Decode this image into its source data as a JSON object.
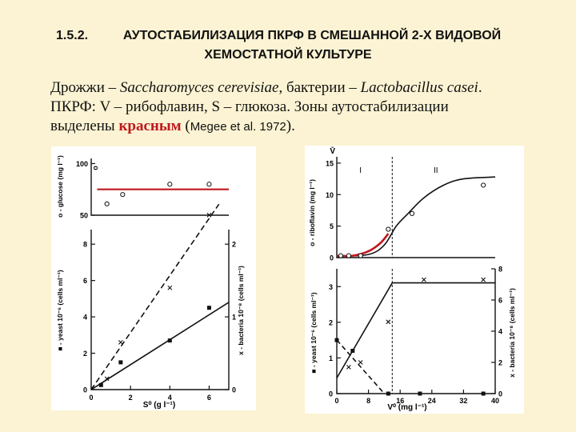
{
  "header": {
    "section_number": "1.5.2.",
    "title_line1": "АУТОСТАБИЛИЗАЦИЯ ПКРФ В СМЕШАННОЙ 2-Х ВИДОВОЙ",
    "title_line2": "ХЕМОСТАТНОЙ КУЛЬТУРЕ"
  },
  "description": {
    "line1_a": "Дрожжи – ",
    "line1_b": "Saccharomyces cerevisiae",
    "line1_c": ", бактерии – ",
    "line1_d": "Lactobacillus casei",
    "line1_e": ".",
    "line2": "ПКРФ: V – рибофлавин, S – глюкоза. Зоны аутостабилизации",
    "line3_a": "выделены ",
    "line3_red": "красным",
    "line3_b": " (",
    "line3_c": "Megee et al. 1972",
    "line3_d": ")."
  },
  "colors": {
    "background": "#fbf3d3",
    "highlight": "#c0181e"
  },
  "chart_data": [
    {
      "type": "scatter",
      "id": "left-top",
      "ylabel": "o - glucose (mg l⁻¹)",
      "yticks": [
        50,
        100
      ],
      "ylim": [
        50,
        105
      ],
      "xlim": [
        0,
        7
      ],
      "panel_letter": "o",
      "series": [
        {
          "marker": "o",
          "points": [
            [
              0.8,
              61
            ],
            [
              1.6,
              70
            ],
            [
              4.0,
              80
            ],
            [
              6.0,
              80
            ]
          ]
        },
        {
          "line": "red-constant",
          "points": [
            [
              0.3,
              75
            ],
            [
              7.0,
              75
            ]
          ]
        }
      ]
    },
    {
      "type": "scatter",
      "id": "left-bottom",
      "xlabel": "S⁰ (g l⁻¹)",
      "ylabel_left": "■ - yeast 10⁻⁶ (cells ml⁻¹)",
      "ylabel_right": "x - bacteria 10⁻⁸ (cells ml⁻¹)",
      "xticks": [
        0,
        2,
        4,
        6
      ],
      "yticks_left": [
        0,
        2,
        4,
        6,
        8
      ],
      "yticks_right": [
        0,
        1,
        2
      ],
      "xlim": [
        0,
        7
      ],
      "ylim_left": [
        0,
        8.8
      ],
      "ylim_right": [
        0,
        2.2
      ],
      "series": [
        {
          "name": "yeast",
          "marker": "■",
          "fit": "solid",
          "points": [
            [
              0.5,
              0.25
            ],
            [
              1.5,
              1.5
            ],
            [
              4.0,
              2.7
            ],
            [
              6.0,
              4.5
            ]
          ],
          "line": [
            [
              0,
              0
            ],
            [
              7,
              4.8
            ]
          ]
        },
        {
          "name": "bacteria",
          "marker": "x",
          "fit": "dashed",
          "points": [
            [
              0.8,
              0.15
            ],
            [
              1.5,
              0.65
            ],
            [
              4.0,
              1.4
            ],
            [
              6.0,
              2.4
            ]
          ],
          "line": [
            [
              0,
              0
            ],
            [
              6.5,
              2.55
            ]
          ]
        }
      ]
    },
    {
      "type": "line",
      "id": "right-top",
      "ylabel": "o - riboflavin (mg l⁻¹)",
      "yticks": [
        0,
        5,
        10,
        15
      ],
      "ylim": [
        0,
        16
      ],
      "xlim": [
        0,
        40
      ],
      "vline_x": 14,
      "zones": [
        "I",
        "II"
      ],
      "corner_label": "V̄",
      "series": [
        {
          "marker": "o",
          "points": [
            [
              1,
              0.3
            ],
            [
              3,
              0.3
            ],
            [
              6,
              0.3
            ],
            [
              13,
              4.5
            ],
            [
              19,
              7
            ],
            [
              37,
              11.5
            ]
          ]
        },
        {
          "line": "black-sigmoid",
          "points": [
            [
              0,
              0.2
            ],
            [
              8,
              0.5
            ],
            [
              12,
              2
            ],
            [
              15,
              5
            ],
            [
              18,
              7
            ],
            [
              22,
              9.5
            ],
            [
              27,
              11.5
            ],
            [
              32,
              12.5
            ],
            [
              40,
              12.8
            ]
          ]
        },
        {
          "line": "red-highlight",
          "points": [
            [
              0,
              0.3
            ],
            [
              4,
              0.3
            ],
            [
              8,
              1
            ],
            [
              11,
              2.3
            ],
            [
              13,
              3.8
            ]
          ]
        }
      ]
    },
    {
      "type": "line",
      "id": "right-bottom",
      "xlabel": "V⁰ (mg l⁻¹)",
      "ylabel_left": "■ - yeast 10⁻⁶ (cells ml⁻¹)",
      "ylabel_right": "x - bacteria 10⁻⁸ (cells ml⁻¹)",
      "xticks": [
        0,
        8,
        16,
        24,
        32,
        40
      ],
      "yticks_left": [
        0,
        1,
        2,
        3
      ],
      "yticks_right": [
        0,
        2,
        4,
        6,
        8
      ],
      "xlim": [
        0,
        40
      ],
      "ylim_left": [
        0,
        3.5
      ],
      "ylim_right": [
        0,
        8
      ],
      "series": [
        {
          "name": "yeast",
          "marker": "■",
          "fit": "dashed",
          "points": [
            [
              0,
              1.5
            ],
            [
              4,
              1.2
            ],
            [
              13,
              0
            ],
            [
              21,
              0
            ],
            [
              37,
              0
            ]
          ],
          "line": [
            [
              0,
              1.5
            ],
            [
              12,
              0
            ]
          ]
        },
        {
          "name": "bacteria",
          "marker": "x",
          "fit": "solid",
          "points": [
            [
              3,
              1.7
            ],
            [
              6,
              2.0
            ],
            [
              13,
              4.6
            ],
            [
              22,
              7.3
            ],
            [
              37,
              7.3
            ]
          ],
          "line": [
            [
              0,
              1.0
            ],
            [
              14,
              7.1
            ],
            [
              40,
              7.1
            ]
          ]
        }
      ]
    }
  ]
}
